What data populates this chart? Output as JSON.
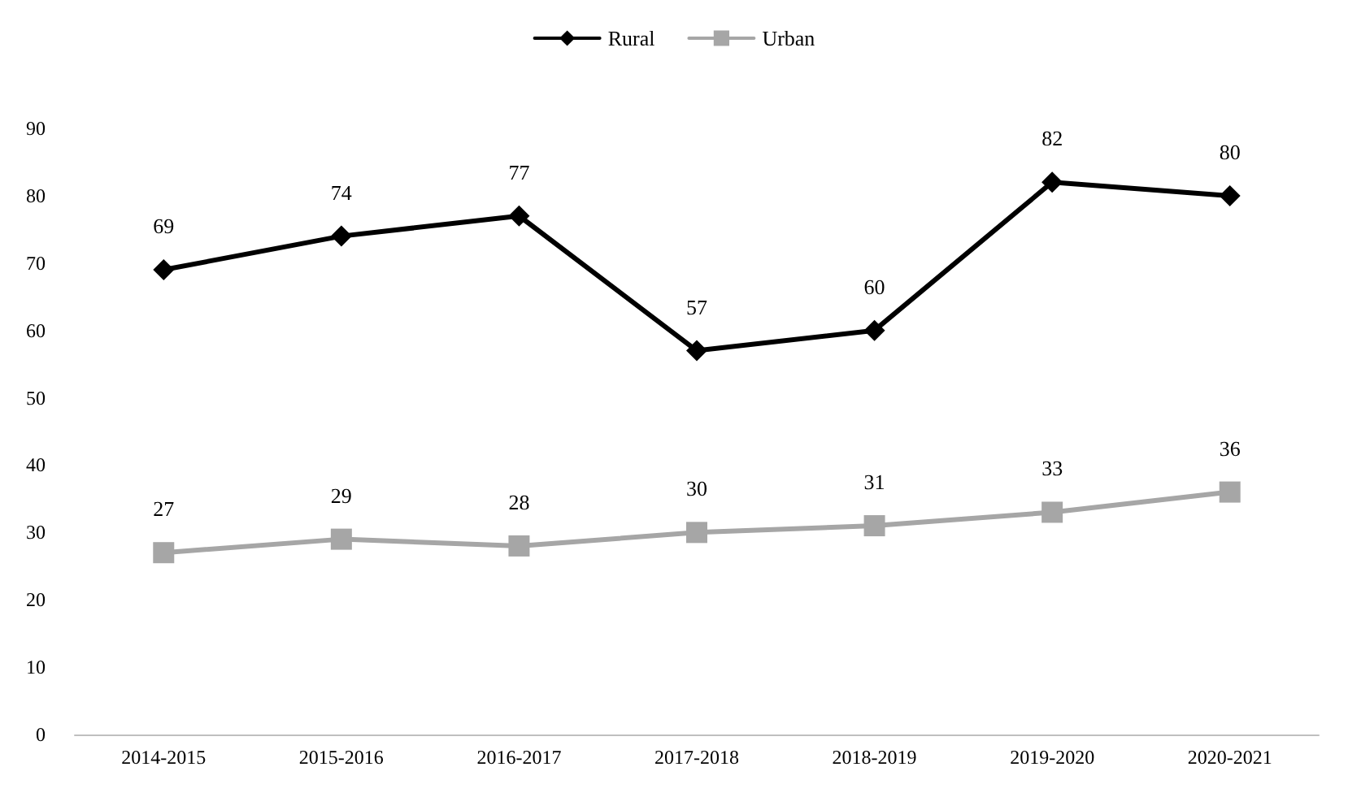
{
  "chart_data": {
    "type": "line",
    "categories": [
      "2014-2015",
      "2015-2016",
      "2016-2017",
      "2017-2018",
      "2018-2019",
      "2019-2020",
      "2020-2021"
    ],
    "series": [
      {
        "name": "Rural",
        "color": "#000000",
        "marker": "diamond",
        "values": [
          69,
          74,
          77,
          57,
          60,
          82,
          80
        ]
      },
      {
        "name": "Urban",
        "color": "#a6a6a6",
        "marker": "square",
        "values": [
          27,
          29,
          28,
          30,
          31,
          33,
          36
        ]
      }
    ],
    "ylim": [
      0,
      90
    ],
    "yticks": [
      0,
      10,
      20,
      30,
      40,
      50,
      60,
      70,
      80,
      90
    ],
    "grid": false,
    "legend": "top",
    "data_labels": true,
    "line_style": "solid"
  }
}
